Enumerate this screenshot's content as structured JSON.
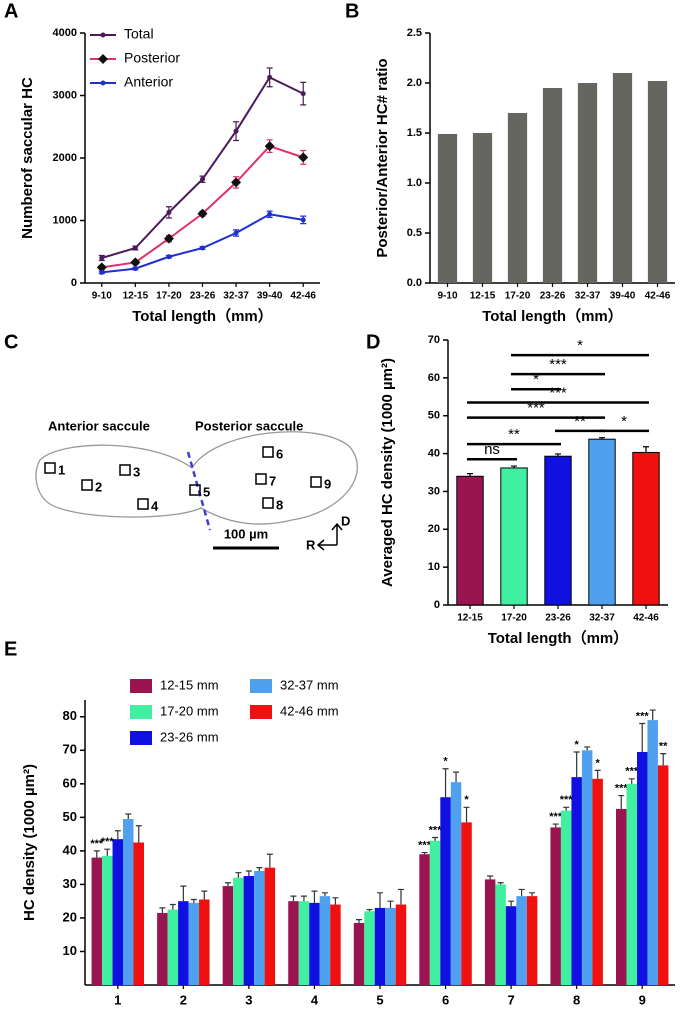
{
  "chart_data": [
    {
      "type": "line",
      "panel_label": "A",
      "x_label": "Total length（mm）",
      "y_label": "Numberof saccular HC",
      "categories": [
        "9-10",
        "12-15",
        "17-20",
        "23-26",
        "32-37",
        "39-40",
        "42-46"
      ],
      "ylim": [
        0,
        4000
      ],
      "yticks": [
        0,
        1000,
        2000,
        3000,
        4000
      ],
      "legend": "top-left",
      "series": [
        {
          "name": "Total",
          "color": "#4b1a5a",
          "marker": "circle",
          "values": [
            400,
            560,
            1130,
            1660,
            2430,
            3290,
            3030
          ],
          "errors": [
            40,
            30,
            90,
            50,
            150,
            150,
            180
          ]
        },
        {
          "name": "Posterior",
          "color": "#e0306a",
          "marker": "diamond",
          "values": [
            250,
            330,
            710,
            1110,
            1610,
            2190,
            2010
          ],
          "errors": [
            30,
            30,
            50,
            40,
            90,
            100,
            110
          ]
        },
        {
          "name": "Anterior",
          "color": "#2030d0",
          "marker": "circle",
          "values": [
            170,
            230,
            420,
            560,
            800,
            1100,
            1010
          ],
          "errors": [
            20,
            20,
            20,
            20,
            50,
            50,
            60
          ]
        }
      ]
    },
    {
      "type": "bar",
      "panel_label": "B",
      "x_label": "Total length（mm）",
      "y_label": "Posterior/Anterior HC# ratio",
      "categories": [
        "9-10",
        "12-15",
        "17-20",
        "23-26",
        "32-37",
        "39-40",
        "42-46"
      ],
      "values": [
        1.49,
        1.5,
        1.7,
        1.95,
        2.0,
        2.1,
        2.02
      ],
      "color": "#666660",
      "ylim": [
        0,
        2.5
      ],
      "yticks": [
        {
          "value": 0,
          "label": "0.0"
        },
        {
          "value": 0.5,
          "label": "0.5"
        },
        {
          "value": 1,
          "label": "1.0"
        },
        {
          "value": 1.5,
          "label": "1.5"
        },
        {
          "value": 2,
          "label": "2.0"
        },
        {
          "value": 2.5,
          "label": "2.5"
        }
      ]
    },
    {
      "type": "bar",
      "panel_label": "D",
      "x_label": "Total length（mm）",
      "y_label": "Averaged HC density (1000 µm²)",
      "categories": [
        "12-15",
        "17-20",
        "23-26",
        "32-37",
        "42-46"
      ],
      "values": [
        34,
        36.2,
        39.3,
        43.8,
        40.3
      ],
      "errors": [
        0.7,
        0.5,
        0.6,
        0.4,
        1.5
      ],
      "colors": [
        "#9a1450",
        "#40f0a0",
        "#1010e0",
        "#50a0f0",
        "#f01010"
      ],
      "ylim": [
        0,
        70
      ],
      "yticks": [
        0,
        10,
        20,
        30,
        40,
        50,
        60,
        70
      ],
      "brackets": [
        {
          "label": "ns",
          "x": [
            "12-15",
            "17-20"
          ],
          "y": 38.5
        },
        {
          "label": "**",
          "x": [
            "12-15",
            "23-26"
          ],
          "y": 42.5
        },
        {
          "label": "**",
          "x": [
            "23-26",
            "32-37"
          ],
          "y": 46
        },
        {
          "label": "*",
          "x": [
            "32-37",
            "42-46"
          ],
          "y": 46
        },
        {
          "label": "***",
          "x": [
            "12-15",
            "32-37"
          ],
          "y": 49.5
        },
        {
          "label": "***",
          "x": [
            "12-15",
            "42-46"
          ],
          "y": 53.5
        },
        {
          "label": "*",
          "x": [
            "17-20",
            "23-26"
          ],
          "y": 57
        },
        {
          "label": "***",
          "x": [
            "17-20",
            "32-37"
          ],
          "y": 61
        },
        {
          "label": "*",
          "x": [
            "17-20",
            "42-46"
          ],
          "y": 66
        }
      ]
    },
    {
      "type": "grouped-bar",
      "panel_label": "E",
      "y_label": "HC density (1000 µm²)",
      "categories": [
        "1",
        "2",
        "3",
        "4",
        "5",
        "6",
        "7",
        "8",
        "9"
      ],
      "ylim": [
        0,
        85
      ],
      "yticks": [
        10,
        20,
        30,
        40,
        50,
        60,
        70,
        80
      ],
      "legend": "top-left",
      "series": [
        {
          "name": "12-15 mm",
          "color": "#9a1450",
          "values": [
            38,
            21.5,
            29.5,
            25,
            18.5,
            39,
            31.5,
            47,
            52.5
          ],
          "errors": [
            2,
            1.5,
            1,
            1.5,
            1,
            0.5,
            1,
            1,
            4
          ],
          "annotations": [
            "***",
            null,
            null,
            null,
            null,
            "***",
            null,
            "***",
            "***"
          ]
        },
        {
          "name": "17-20 mm",
          "color": "#40f0a0",
          "values": [
            38.5,
            22.5,
            32,
            25,
            22,
            43,
            30,
            52,
            60
          ],
          "errors": [
            2,
            1.5,
            1.5,
            1.5,
            0.5,
            1,
            0.5,
            1,
            1.5
          ],
          "annotations": [
            "***",
            null,
            null,
            null,
            null,
            "***",
            null,
            "***",
            "***"
          ]
        },
        {
          "name": "23-26 mm",
          "color": "#1010e0",
          "values": [
            43.5,
            25,
            32.5,
            24.5,
            23,
            56,
            23.5,
            62,
            69.5
          ],
          "errors": [
            2.5,
            4.5,
            1.5,
            3.5,
            4.5,
            8.5,
            1.5,
            7.5,
            8.5
          ],
          "annotations": [
            null,
            null,
            null,
            null,
            null,
            "*",
            null,
            "*",
            "***"
          ]
        },
        {
          "name": "32-37 mm",
          "color": "#50a0f0",
          "values": [
            49.5,
            24.5,
            34,
            26.5,
            23,
            60.5,
            26.5,
            70,
            79
          ],
          "errors": [
            1.5,
            1,
            1,
            1,
            2,
            3,
            2,
            1,
            3
          ],
          "annotations": [
            null,
            null,
            null,
            null,
            null,
            null,
            null,
            null,
            null
          ]
        },
        {
          "name": "42-46 mm",
          "color": "#f01010",
          "values": [
            42.5,
            25.5,
            35,
            24,
            24,
            48.5,
            26.5,
            61.5,
            65.5
          ],
          "errors": [
            5,
            2.5,
            4,
            2,
            4.5,
            4.5,
            1,
            2.5,
            3.5
          ],
          "annotations": [
            null,
            null,
            null,
            null,
            null,
            "*",
            null,
            "*",
            "**"
          ]
        }
      ]
    }
  ],
  "diagram": {
    "panel_label": "C",
    "regions": [
      "Anterior saccule",
      "Posterior saccule"
    ],
    "sites": [
      "1",
      "2",
      "3",
      "4",
      "5",
      "6",
      "7",
      "8",
      "9"
    ],
    "scale_bar": "100 µm",
    "axes": [
      "D",
      "R"
    ]
  }
}
